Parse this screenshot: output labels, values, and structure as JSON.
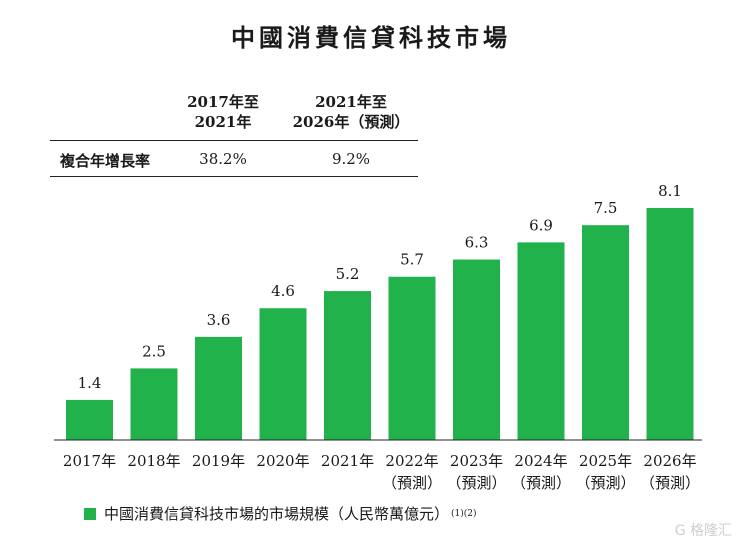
{
  "title": "中國消費信貸科技市場",
  "cagr_table": {
    "headers": [
      {
        "line1": "2017年至",
        "line2": "2021年"
      },
      {
        "line1": "2021年至",
        "line2": "2026年（預測）"
      }
    ],
    "row_label": "複合年增長率",
    "values": [
      "38.2%",
      "9.2%"
    ]
  },
  "chart_data": {
    "type": "bar",
    "title": "中國消費信貸科技市場",
    "categories": [
      {
        "year": "2017年",
        "note": ""
      },
      {
        "year": "2018年",
        "note": ""
      },
      {
        "year": "2019年",
        "note": ""
      },
      {
        "year": "2020年",
        "note": ""
      },
      {
        "year": "2021年",
        "note": ""
      },
      {
        "year": "2022年",
        "note": "（預測）"
      },
      {
        "year": "2023年",
        "note": "（預測）"
      },
      {
        "year": "2024年",
        "note": "（預測）"
      },
      {
        "year": "2025年",
        "note": "（預測）"
      },
      {
        "year": "2026年",
        "note": "（預測）"
      }
    ],
    "series": [
      {
        "name": "中國消費信貸科技市場的市場規模（人民幣萬億元）",
        "values": [
          1.4,
          2.5,
          3.6,
          4.6,
          5.2,
          5.7,
          6.3,
          6.9,
          7.5,
          8.1
        ]
      }
    ],
    "ylim": [
      0,
      8.1
    ],
    "legend_position": "bottom-left",
    "grid": false,
    "bar_color": "#22b24c"
  },
  "legend": {
    "label": "中國消費信貸科技市場的市場規模（人民幣萬億元）",
    "note": "(1)(2)"
  },
  "watermark": "G 格隆汇"
}
